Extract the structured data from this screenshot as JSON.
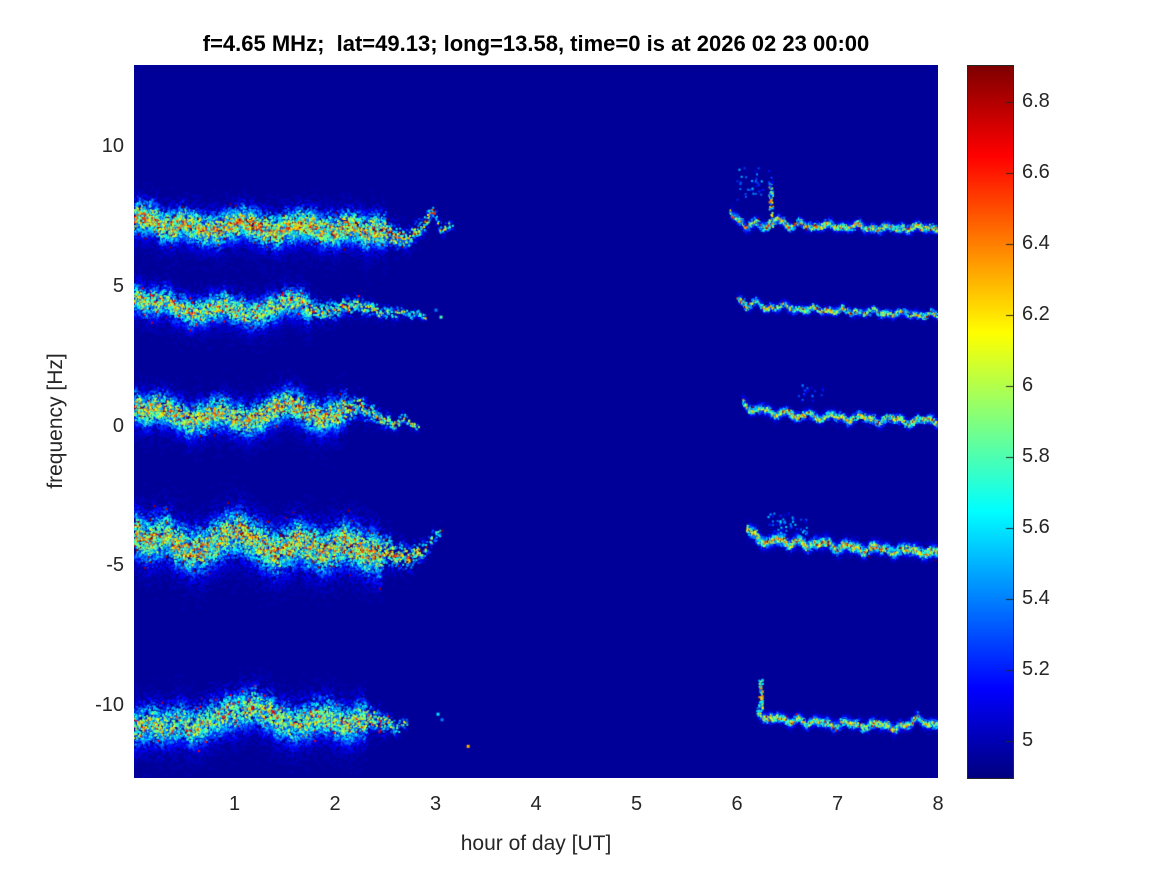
{
  "chart_data": {
    "type": "heatmap",
    "title": "f=4.65 MHz;  lat=49.13; long=13.58, time=0 is at 2026 02 23 00:00",
    "xlabel": "hour of day [UT]",
    "ylabel": "frequency [Hz]",
    "xlim": [
      0,
      8
    ],
    "ylim": [
      -12.6,
      12.9
    ],
    "x_ticks": [
      1,
      2,
      3,
      4,
      5,
      6,
      7,
      8
    ],
    "y_ticks": [
      10,
      5,
      0,
      -5,
      -10
    ],
    "grid": false,
    "colormap": "jet",
    "color_range": [
      4.9,
      6.9
    ],
    "colorbar_ticks": [
      5,
      5.2,
      5.4,
      5.6,
      5.8,
      6,
      6.2,
      6.4,
      6.6,
      6.8
    ],
    "colorbar_position": "right",
    "background_value": 4.95,
    "colors": {
      "tick_label": "#262626",
      "title": "#000000",
      "colorbar_border": "#262626"
    },
    "bands": [
      {
        "name": "trace-plus7Hz",
        "center_freq": 7.2,
        "left": {
          "points": [
            [
              0.0,
              7.45
            ],
            [
              0.15,
              7.5
            ],
            [
              0.3,
              7.1
            ],
            [
              0.5,
              7.3
            ],
            [
              0.65,
              7.05
            ],
            [
              0.8,
              7.0
            ],
            [
              0.95,
              7.2
            ],
            [
              1.1,
              7.35
            ],
            [
              1.25,
              7.1
            ],
            [
              1.4,
              6.95
            ],
            [
              1.55,
              7.15
            ],
            [
              1.7,
              7.25
            ],
            [
              1.85,
              7.05
            ],
            [
              2.0,
              7.0
            ],
            [
              2.15,
              7.2
            ],
            [
              2.3,
              6.95
            ],
            [
              2.45,
              7.05
            ],
            [
              2.6,
              6.8
            ],
            [
              2.7,
              6.7
            ],
            [
              2.85,
              7.1
            ],
            [
              2.97,
              7.7
            ],
            [
              3.05,
              7.0
            ],
            [
              3.17,
              7.25
            ]
          ],
          "spread": 0.5,
          "density": 22,
          "vmax": 6.7,
          "fade_after": 2.5,
          "skew": -0.5
        },
        "right": {
          "points": [
            [
              5.93,
              7.7
            ],
            [
              6.0,
              7.4
            ],
            [
              6.08,
              7.15
            ],
            [
              6.18,
              7.3
            ],
            [
              6.3,
              7.1
            ],
            [
              6.4,
              7.5
            ],
            [
              6.5,
              7.1
            ],
            [
              6.62,
              7.3
            ],
            [
              6.75,
              7.1
            ],
            [
              6.9,
              7.25
            ],
            [
              7.05,
              7.1
            ],
            [
              7.2,
              7.2
            ],
            [
              7.35,
              7.05
            ],
            [
              7.5,
              7.15
            ],
            [
              7.65,
              7.05
            ],
            [
              7.8,
              7.15
            ],
            [
              7.95,
              7.05
            ],
            [
              8.0,
              7.1
            ]
          ],
          "spread": 0.11,
          "density": 7,
          "vmax": 6.7,
          "gap": 0.1,
          "bursts": [
            {
              "t": 6.33,
              "f0": 7.1,
              "f1": 8.7
            }
          ],
          "scatter": [
            {
              "t0": 5.95,
              "t1": 6.35,
              "f0": 8.1,
              "f1": 9.3,
              "n": 45,
              "v": 5.6
            }
          ]
        }
      },
      {
        "name": "trace-plus4Hz",
        "center_freq": 4.2,
        "left": {
          "points": [
            [
              0.0,
              4.6
            ],
            [
              0.15,
              4.4
            ],
            [
              0.3,
              4.5
            ],
            [
              0.45,
              4.2
            ],
            [
              0.6,
              4.05
            ],
            [
              0.75,
              4.2
            ],
            [
              0.9,
              4.35
            ],
            [
              1.05,
              4.1
            ],
            [
              1.2,
              4.0
            ],
            [
              1.35,
              4.2
            ],
            [
              1.5,
              4.45
            ],
            [
              1.6,
              4.5
            ],
            [
              1.75,
              4.2
            ],
            [
              1.9,
              4.1
            ],
            [
              2.05,
              4.25
            ],
            [
              2.2,
              4.35
            ],
            [
              2.35,
              4.2
            ],
            [
              2.5,
              4.05
            ],
            [
              2.65,
              4.1
            ],
            [
              2.9,
              3.95
            ]
          ],
          "spread": 0.45,
          "density": 18,
          "vmax": 6.4,
          "fade_after": 1.75,
          "skew": -0.5
        },
        "right": {
          "points": [
            [
              6.0,
              4.55
            ],
            [
              6.1,
              4.3
            ],
            [
              6.2,
              4.45
            ],
            [
              6.3,
              4.2
            ],
            [
              6.45,
              4.35
            ],
            [
              6.6,
              4.15
            ],
            [
              6.75,
              4.25
            ],
            [
              6.9,
              4.1
            ],
            [
              7.05,
              4.2
            ],
            [
              7.2,
              4.05
            ],
            [
              7.35,
              4.15
            ],
            [
              7.5,
              4.0
            ],
            [
              7.65,
              4.1
            ],
            [
              7.8,
              3.95
            ],
            [
              7.95,
              4.05
            ],
            [
              8.0,
              4.0
            ]
          ],
          "spread": 0.1,
          "density": 6,
          "vmax": 6.6,
          "gap": 0.12
        },
        "dots": [
          [
            3.05,
            3.9,
            5.8
          ],
          [
            3.0,
            4.15,
            5.4
          ]
        ]
      },
      {
        "name": "trace-0Hz",
        "center_freq": 0.4,
        "left": {
          "points": [
            [
              0.0,
              0.7
            ],
            [
              0.12,
              0.55
            ],
            [
              0.25,
              0.7
            ],
            [
              0.4,
              0.45
            ],
            [
              0.55,
              0.2
            ],
            [
              0.7,
              0.35
            ],
            [
              0.85,
              0.55
            ],
            [
              1.0,
              0.3
            ],
            [
              1.15,
              0.2
            ],
            [
              1.3,
              0.45
            ],
            [
              1.45,
              0.75
            ],
            [
              1.55,
              0.9
            ],
            [
              1.7,
              0.5
            ],
            [
              1.85,
              0.3
            ],
            [
              2.0,
              0.45
            ],
            [
              2.1,
              0.6
            ],
            [
              2.25,
              0.75
            ],
            [
              2.35,
              0.5
            ],
            [
              2.5,
              0.2
            ],
            [
              2.6,
              0.1
            ],
            [
              2.7,
              0.3
            ],
            [
              2.82,
              -0.1
            ]
          ],
          "spread": 0.5,
          "density": 20,
          "vmax": 6.6,
          "fade_after": 2.1,
          "skew": -0.5
        },
        "right": {
          "points": [
            [
              6.05,
              0.9
            ],
            [
              6.15,
              0.5
            ],
            [
              6.25,
              0.7
            ],
            [
              6.35,
              0.4
            ],
            [
              6.5,
              0.55
            ],
            [
              6.6,
              0.3
            ],
            [
              6.7,
              0.5
            ],
            [
              6.8,
              0.25
            ],
            [
              6.95,
              0.45
            ],
            [
              7.1,
              0.2
            ],
            [
              7.25,
              0.4
            ],
            [
              7.4,
              0.15
            ],
            [
              7.55,
              0.35
            ],
            [
              7.7,
              0.1
            ],
            [
              7.85,
              0.3
            ],
            [
              8.0,
              0.1
            ]
          ],
          "spread": 0.12,
          "density": 7,
          "vmax": 6.6,
          "gap": 0.1,
          "scatter": [
            {
              "t0": 6.6,
              "t1": 6.85,
              "f0": 0.9,
              "f1": 1.5,
              "n": 20,
              "v": 5.4
            }
          ]
        }
      },
      {
        "name": "trace-minus4Hz",
        "center_freq": -4.3,
        "left": {
          "points": [
            [
              0.0,
              -3.9
            ],
            [
              0.15,
              -4.1
            ],
            [
              0.3,
              -3.85
            ],
            [
              0.45,
              -4.3
            ],
            [
              0.6,
              -4.5
            ],
            [
              0.72,
              -4.3
            ],
            [
              0.85,
              -4.0
            ],
            [
              1.0,
              -3.75
            ],
            [
              1.1,
              -3.85
            ],
            [
              1.25,
              -4.2
            ],
            [
              1.4,
              -4.5
            ],
            [
              1.5,
              -4.35
            ],
            [
              1.62,
              -4.1
            ],
            [
              1.75,
              -4.3
            ],
            [
              1.9,
              -4.5
            ],
            [
              2.0,
              -4.3
            ],
            [
              2.1,
              -4.15
            ],
            [
              2.25,
              -4.4
            ],
            [
              2.4,
              -4.6
            ],
            [
              2.55,
              -4.45
            ],
            [
              2.7,
              -4.7
            ],
            [
              2.85,
              -4.5
            ],
            [
              2.95,
              -4.1
            ],
            [
              3.05,
              -3.65
            ]
          ],
          "spread": 0.7,
          "density": 26,
          "vmax": 6.6,
          "fade_after": 2.45,
          "skew": -0.3
        },
        "right": {
          "points": [
            [
              6.1,
              -3.6
            ],
            [
              6.2,
              -4.0
            ],
            [
              6.3,
              -4.2
            ],
            [
              6.4,
              -3.95
            ],
            [
              6.5,
              -4.25
            ],
            [
              6.6,
              -4.05
            ],
            [
              6.7,
              -4.3
            ],
            [
              6.85,
              -4.1
            ],
            [
              7.0,
              -4.4
            ],
            [
              7.1,
              -4.2
            ],
            [
              7.25,
              -4.45
            ],
            [
              7.4,
              -4.3
            ],
            [
              7.55,
              -4.5
            ],
            [
              7.7,
              -4.35
            ],
            [
              7.85,
              -4.55
            ],
            [
              8.0,
              -4.45
            ]
          ],
          "spread": 0.16,
          "density": 10,
          "vmax": 6.65,
          "gap": 0.08,
          "scatter": [
            {
              "t0": 6.3,
              "t1": 6.7,
              "f0": -3.9,
              "f1": -3.1,
              "n": 60,
              "v": 5.6
            }
          ]
        }
      },
      {
        "name": "trace-minus10Hz",
        "center_freq": -10.6,
        "left": {
          "points": [
            [
              0.0,
              -10.8
            ],
            [
              0.15,
              -10.6
            ],
            [
              0.3,
              -10.75
            ],
            [
              0.45,
              -10.55
            ],
            [
              0.6,
              -10.8
            ],
            [
              0.75,
              -10.5
            ],
            [
              0.9,
              -10.3
            ],
            [
              1.05,
              -10.15
            ],
            [
              1.2,
              -10.0
            ],
            [
              1.3,
              -10.2
            ],
            [
              1.45,
              -10.5
            ],
            [
              1.6,
              -10.7
            ],
            [
              1.7,
              -10.55
            ],
            [
              1.85,
              -10.35
            ],
            [
              2.0,
              -10.5
            ],
            [
              2.1,
              -10.7
            ],
            [
              2.2,
              -10.55
            ],
            [
              2.35,
              -10.4
            ],
            [
              2.5,
              -10.6
            ],
            [
              2.6,
              -10.75
            ],
            [
              2.72,
              -10.6
            ]
          ],
          "spread": 0.6,
          "density": 22,
          "vmax": 6.4,
          "fade_after": 2.3,
          "skew": -0.4
        },
        "right": {
          "points": [
            [
              6.2,
              -10.2
            ],
            [
              6.3,
              -10.5
            ],
            [
              6.4,
              -10.35
            ],
            [
              6.5,
              -10.6
            ],
            [
              6.6,
              -10.45
            ],
            [
              6.7,
              -10.65
            ],
            [
              6.8,
              -10.5
            ],
            [
              6.95,
              -10.7
            ],
            [
              7.1,
              -10.55
            ],
            [
              7.25,
              -10.75
            ],
            [
              7.4,
              -10.6
            ],
            [
              7.55,
              -10.8
            ],
            [
              7.7,
              -10.65
            ],
            [
              7.8,
              -10.4
            ],
            [
              7.9,
              -10.7
            ],
            [
              8.0,
              -10.6
            ]
          ],
          "spread": 0.13,
          "density": 8,
          "vmax": 6.5,
          "gap": 0.1,
          "bursts": [
            {
              "t": 6.23,
              "f0": -10.2,
              "f1": -9.0
            }
          ]
        },
        "dots": [
          [
            3.02,
            -10.3,
            5.6
          ],
          [
            3.06,
            -10.5,
            5.4
          ],
          [
            3.32,
            -11.45,
            6.3
          ]
        ]
      }
    ]
  }
}
